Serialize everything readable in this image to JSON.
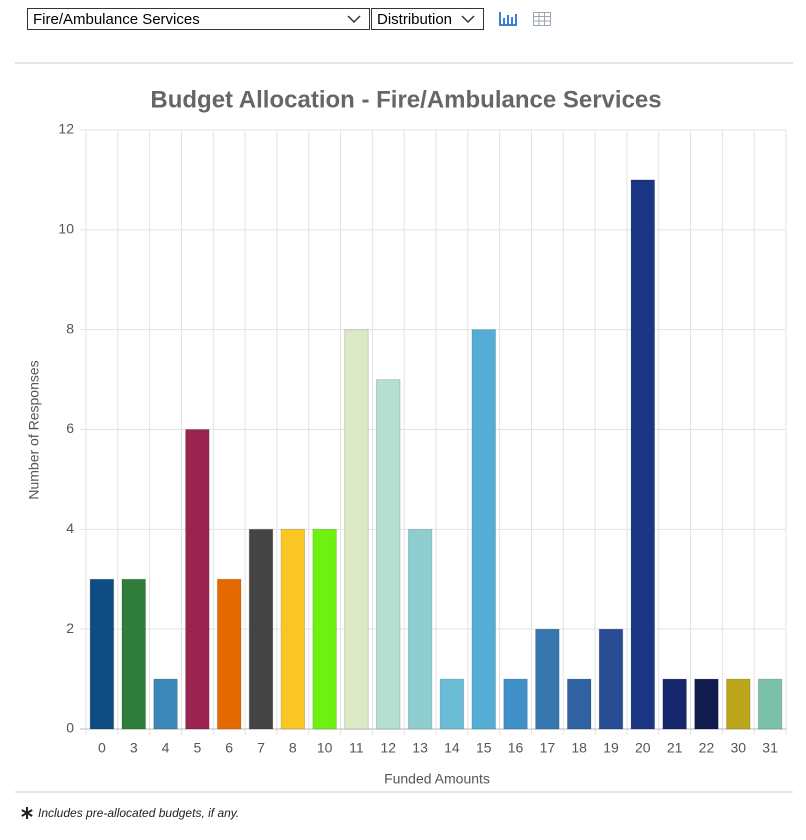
{
  "controls": {
    "category_select": "Fire/Ambulance Services",
    "view_select": "Distribution"
  },
  "chart_data": {
    "type": "bar",
    "title": "Budget Allocation - Fire/Ambulance Services",
    "x_label": "Funded Amounts",
    "y_label": "Number of Responses",
    "categories": [
      "0",
      "3",
      "4",
      "5",
      "6",
      "7",
      "8",
      "10",
      "11",
      "12",
      "13",
      "14",
      "15",
      "16",
      "17",
      "18",
      "19",
      "20",
      "21",
      "22",
      "30",
      "31"
    ],
    "values": [
      3,
      3,
      1,
      6,
      3,
      4,
      4,
      4,
      8,
      7,
      4,
      1,
      8,
      1,
      2,
      1,
      2,
      11,
      1,
      1,
      1,
      1
    ],
    "colors": [
      "#0f4c81",
      "#2e7d3a",
      "#3a87b8",
      "#9b2350",
      "#e46a00",
      "#444444",
      "#f9c623",
      "#6ef010",
      "#dce9c4",
      "#b5dfd0",
      "#8ecdd0",
      "#6bbcd6",
      "#55acd4",
      "#3f8fc8",
      "#3777b0",
      "#2f62a0",
      "#274c94",
      "#1b3585",
      "#15266a",
      "#101c4e",
      "#bca61a",
      "#7cc2aa"
    ],
    "ylim": [
      0,
      12
    ],
    "yticks": [
      0,
      2,
      4,
      6,
      8,
      10,
      12
    ],
    "grid": true
  },
  "footnote": "Includes pre-allocated budgets, if any."
}
